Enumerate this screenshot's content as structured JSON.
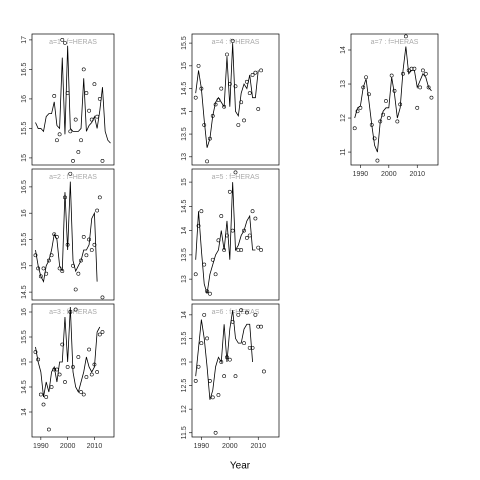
{
  "xlabel": "Year",
  "chart_data": [
    {
      "type": "line",
      "title": "a=1 : f=HERAS",
      "xlim": [
        1986.7,
        2017.3
      ],
      "ylim": [
        14.88,
        17.1
      ],
      "yticks": [
        15.0,
        15.5,
        16.0,
        16.5,
        17.0
      ],
      "x": [
        1988,
        1989,
        1990,
        1991,
        1992,
        1993,
        1994,
        1995,
        1996,
        1997,
        1998,
        1999,
        2000,
        2001,
        2002,
        2003,
        2004,
        2005,
        2006,
        2007,
        2008,
        2009,
        2010,
        2011,
        2012,
        2013,
        2014,
        2015,
        2016
      ],
      "series": [
        {
          "mode": "line",
          "color": "#000000",
          "values": [
            15.6,
            15.5,
            15.5,
            15.45,
            15.7,
            15.75,
            15.75,
            15.95,
            15.55,
            15.5,
            16.7,
            15.4,
            16.9,
            15.5,
            15.45,
            15.45,
            15.45,
            15.5,
            16.35,
            15.45,
            15.55,
            15.6,
            15.7,
            15.5,
            15.8,
            16.2,
            15.45,
            15.3,
            15.25
          ]
        },
        {
          "mode": "points",
          "color": "#000000",
          "values": [
            null,
            null,
            null,
            null,
            null,
            null,
            null,
            16.05,
            15.3,
            15.4,
            17.0,
            16.95,
            16.1,
            15.45,
            14.95,
            15.65,
            15.1,
            15.3,
            16.5,
            16.1,
            15.8,
            15.65,
            16.25,
            15.7,
            16.0,
            14.95,
            null,
            null,
            null
          ]
        }
      ]
    },
    {
      "type": "line",
      "title": "a=2 : f=HERAS",
      "xlim": [
        1986.7,
        2017.3
      ],
      "ylim": [
        14.35,
        16.84
      ],
      "yticks": [
        14.5,
        15.0,
        15.5,
        16.0,
        16.5
      ],
      "x": [
        1988,
        1989,
        1990,
        1991,
        1992,
        1993,
        1994,
        1995,
        1996,
        1997,
        1998,
        1999,
        2000,
        2001,
        2002,
        2003,
        2004,
        2005,
        2006,
        2007,
        2008,
        2009,
        2010,
        2011,
        2012,
        2013,
        2014,
        2015,
        2016
      ],
      "series": [
        {
          "mode": "line",
          "color": "#000000",
          "values": [
            15.3,
            15.0,
            14.8,
            14.7,
            15.0,
            15.1,
            15.3,
            15.6,
            15.5,
            15.0,
            14.9,
            16.4,
            15.3,
            16.6,
            15.1,
            14.9,
            15.0,
            15.1,
            15.3,
            15.3,
            15.4,
            15.9,
            16.0,
            14.7,
            null,
            null,
            null,
            null,
            null
          ]
        },
        {
          "mode": "points",
          "color": "#000000",
          "values": [
            15.2,
            14.95,
            14.8,
            14.95,
            14.85,
            15.1,
            15.2,
            15.6,
            15.55,
            14.95,
            14.9,
            16.3,
            15.4,
            16.75,
            15.0,
            14.55,
            14.85,
            15.1,
            15.55,
            15.2,
            15.5,
            15.3,
            15.4,
            16.05,
            16.3,
            14.4,
            null,
            null,
            null
          ]
        }
      ]
    },
    {
      "type": "line",
      "title": "a=3 : f=HERAS",
      "xlim": [
        1986.7,
        2017.3
      ],
      "ylim": [
        13.5,
        16.16
      ],
      "yticks": [
        14.0,
        14.5,
        15.0,
        15.5,
        16.0
      ],
      "xticks": [
        1990,
        2000,
        2010
      ],
      "x": [
        1988,
        1989,
        1990,
        1991,
        1992,
        1993,
        1994,
        1995,
        1996,
        1997,
        1998,
        1999,
        2000,
        2001,
        2002,
        2003,
        2004,
        2005,
        2006,
        2007,
        2008,
        2009,
        2010,
        2011,
        2012,
        2013,
        2014,
        2015,
        2016
      ],
      "series": [
        {
          "mode": "line",
          "color": "#000000",
          "values": [
            15.3,
            15.0,
            14.8,
            14.3,
            14.6,
            14.4,
            14.8,
            14.9,
            14.6,
            15.0,
            15.0,
            15.9,
            15.0,
            16.1,
            14.8,
            14.5,
            14.4,
            14.6,
            14.8,
            15.1,
            14.9,
            14.8,
            14.9,
            15.6,
            15.7,
            null,
            null,
            null,
            null
          ]
        },
        {
          "mode": "points",
          "color": "#000000",
          "values": [
            15.2,
            15.05,
            14.35,
            14.15,
            14.3,
            13.65,
            14.5,
            14.85,
            14.85,
            14.75,
            15.35,
            14.6,
            14.9,
            16.0,
            14.9,
            16.05,
            15.1,
            14.4,
            14.35,
            14.7,
            15.25,
            14.75,
            14.95,
            14.8,
            15.55,
            15.6,
            null,
            null,
            null
          ]
        }
      ]
    },
    {
      "type": "line",
      "title": "a=4 : f=HERAS",
      "xlim": [
        1986.7,
        2017.3
      ],
      "ylim": [
        12.82,
        15.7
      ],
      "yticks": [
        13.0,
        13.5,
        14.0,
        14.5,
        15.0,
        15.5
      ],
      "x": [
        1988,
        1989,
        1990,
        1991,
        1992,
        1993,
        1994,
        1995,
        1996,
        1997,
        1998,
        1999,
        2000,
        2001,
        2002,
        2003,
        2004,
        2005,
        2006,
        2007,
        2008,
        2009,
        2010,
        2011,
        2012,
        2013,
        2014,
        2015,
        2016
      ],
      "series": [
        {
          "mode": "line",
          "color": "#000000",
          "values": [
            14.4,
            14.9,
            14.5,
            13.8,
            13.2,
            13.4,
            13.9,
            14.2,
            14.3,
            14.2,
            14.1,
            15.2,
            14.1,
            15.5,
            14.0,
            13.9,
            14.4,
            14.6,
            14.5,
            14.8,
            14.3,
            14.3,
            14.9,
            null,
            null,
            null,
            null,
            null,
            null
          ]
        },
        {
          "mode": "points",
          "color": "#000000",
          "values": [
            14.3,
            15.0,
            14.5,
            13.7,
            12.9,
            13.4,
            13.9,
            14.15,
            14.25,
            14.5,
            14.1,
            15.25,
            14.6,
            15.55,
            14.55,
            13.7,
            14.2,
            13.8,
            14.65,
            14.4,
            14.8,
            14.85,
            14.05,
            14.9,
            null,
            null,
            null,
            null,
            null
          ]
        }
      ]
    },
    {
      "type": "line",
      "title": "a=5 : f=HERAS",
      "xlim": [
        1986.7,
        2017.3
      ],
      "ylim": [
        12.57,
        15.27
      ],
      "yticks": [
        13.0,
        13.5,
        14.0,
        14.5,
        15.0
      ],
      "x": [
        1988,
        1989,
        1990,
        1991,
        1992,
        1993,
        1994,
        1995,
        1996,
        1997,
        1998,
        1999,
        2000,
        2001,
        2002,
        2003,
        2004,
        2005,
        2006,
        2007,
        2008,
        2009,
        2010,
        2011,
        2012,
        2013,
        2014,
        2015,
        2016
      ],
      "series": [
        {
          "mode": "line",
          "color": "#000000",
          "values": [
            13.4,
            14.4,
            13.6,
            12.9,
            12.7,
            13.1,
            13.3,
            13.5,
            13.6,
            14.0,
            13.6,
            14.2,
            13.4,
            15.0,
            13.6,
            13.7,
            13.9,
            14.0,
            14.2,
            14.3,
            13.6,
            13.6,
            null,
            null,
            null,
            null,
            null,
            null,
            null
          ]
        },
        {
          "mode": "points",
          "color": "#000000",
          "values": [
            13.1,
            14.1,
            14.4,
            13.3,
            12.75,
            12.7,
            13.4,
            13.1,
            13.8,
            14.3,
            13.6,
            13.9,
            14.8,
            14.0,
            15.2,
            13.6,
            13.6,
            14.0,
            13.85,
            13.9,
            14.4,
            14.25,
            13.65,
            13.6,
            null,
            null,
            null,
            null,
            null
          ]
        }
      ]
    },
    {
      "type": "line",
      "title": "a=6 : f=HERAS",
      "xlim": [
        1986.7,
        2017.3
      ],
      "ylim": [
        11.41,
        14.23
      ],
      "yticks": [
        11.5,
        12.0,
        12.5,
        13.0,
        13.5,
        14.0
      ],
      "xticks": [
        1990,
        2000,
        2010
      ],
      "x": [
        1988,
        1989,
        1990,
        1991,
        1992,
        1993,
        1994,
        1995,
        1996,
        1997,
        1998,
        1999,
        2000,
        2001,
        2002,
        2003,
        2004,
        2005,
        2006,
        2007,
        2008,
        2009,
        2010,
        2011,
        2012,
        2013,
        2014,
        2015,
        2016
      ],
      "series": [
        {
          "mode": "line",
          "color": "#000000",
          "values": [
            12.7,
            13.3,
            13.9,
            13.5,
            12.9,
            12.2,
            12.4,
            12.9,
            13.1,
            13.0,
            13.8,
            13.0,
            13.7,
            14.1,
            13.5,
            13.4,
            13.4,
            13.7,
            13.8,
            13.8,
            13.0,
            null,
            null,
            null,
            null,
            null,
            null,
            null,
            null
          ]
        },
        {
          "mode": "points",
          "color": "#000000",
          "values": [
            12.6,
            12.9,
            13.4,
            14.0,
            13.5,
            12.6,
            12.25,
            11.5,
            12.3,
            13.0,
            12.7,
            13.1,
            13.05,
            13.85,
            12.7,
            14.0,
            14.1,
            13.4,
            14.05,
            13.3,
            13.3,
            14.0,
            13.75,
            13.75,
            12.8,
            null,
            null,
            null,
            null
          ]
        }
      ]
    },
    {
      "type": "line",
      "title": "a=7 : f=HERAS",
      "xlim": [
        1986.7,
        2017.3
      ],
      "ylim": [
        10.62,
        14.47
      ],
      "yticks": [
        11,
        12,
        13,
        14
      ],
      "xticks": [
        1990,
        2000,
        2010
      ],
      "x": [
        1988,
        1989,
        1990,
        1991,
        1992,
        1993,
        1994,
        1995,
        1996,
        1997,
        1998,
        1999,
        2000,
        2001,
        2002,
        2003,
        2004,
        2005,
        2006,
        2007,
        2008,
        2009,
        2010,
        2011,
        2012,
        2013,
        2014,
        2015,
        2016
      ],
      "series": [
        {
          "mode": "line",
          "color": "#000000",
          "values": [
            12.0,
            12.3,
            12.35,
            12.9,
            13.15,
            12.5,
            11.8,
            11.2,
            11.0,
            11.9,
            12.2,
            12.3,
            12.3,
            13.2,
            12.7,
            12.0,
            12.3,
            13.4,
            14.1,
            13.3,
            13.4,
            13.4,
            12.9,
            13.1,
            13.3,
            13.2,
            12.9,
            12.8,
            null
          ]
        },
        {
          "mode": "points",
          "color": "#000000",
          "values": [
            11.7,
            12.2,
            12.3,
            12.9,
            13.2,
            12.7,
            11.8,
            11.4,
            10.75,
            11.9,
            12.1,
            12.5,
            12.0,
            13.25,
            12.8,
            11.9,
            12.4,
            13.3,
            14.4,
            13.4,
            13.45,
            13.45,
            12.3,
            12.9,
            13.4,
            13.3,
            12.9,
            12.6,
            null
          ]
        }
      ]
    }
  ]
}
